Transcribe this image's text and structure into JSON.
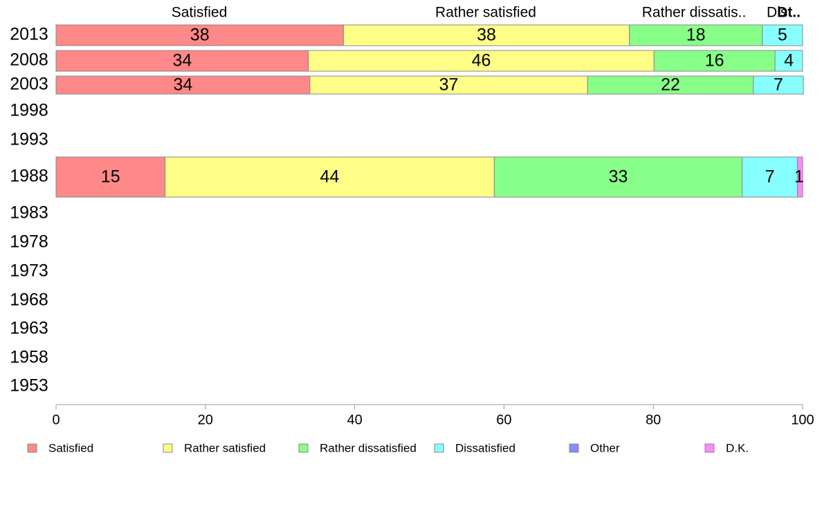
{
  "chart_data": {
    "type": "bar",
    "orientation": "horizontal",
    "stacked": "percent",
    "categories": [
      "2013",
      "2008",
      "2003",
      "1998",
      "1993",
      "1988",
      "1983",
      "1978",
      "1973",
      "1968",
      "1963",
      "1958",
      "1953"
    ],
    "series": [
      {
        "name": "Satisfied",
        "color": "#ff8888",
        "values": [
          38.5,
          33.8,
          34.0,
          null,
          null,
          14.6,
          null,
          null,
          null,
          null,
          null,
          null,
          null
        ],
        "labels": [
          "38",
          "34",
          "34",
          "",
          "",
          "15",
          "",
          "",
          "",
          "",
          "",
          "",
          ""
        ]
      },
      {
        "name": "Rather satisfied",
        "color": "#ffff88",
        "values": [
          38.3,
          46.3,
          37.2,
          null,
          null,
          44.1,
          null,
          null,
          null,
          null,
          null,
          null,
          null
        ],
        "labels": [
          "38",
          "46",
          "37",
          "",
          "",
          "44",
          "",
          "",
          "",
          "",
          "",
          "",
          ""
        ]
      },
      {
        "name": "Rather dissatisfied",
        "color": "#88ff88",
        "values": [
          17.8,
          16.2,
          22.2,
          null,
          null,
          33.2,
          null,
          null,
          null,
          null,
          null,
          null,
          null
        ],
        "labels": [
          "18",
          "16",
          "22",
          "",
          "",
          "33",
          "",
          "",
          "",
          "",
          "",
          "",
          ""
        ]
      },
      {
        "name": "Dissatisfied",
        "color": "#88ffff",
        "values": [
          5.4,
          3.7,
          6.7,
          null,
          null,
          7.4,
          null,
          null,
          null,
          null,
          null,
          null,
          null
        ],
        "labels": [
          "5",
          "4",
          "7",
          "",
          "",
          "7",
          "",
          "",
          "",
          "",
          "",
          "",
          ""
        ]
      },
      {
        "name": "Other",
        "color": "#8888ff",
        "values": [
          0,
          0,
          0,
          null,
          null,
          0,
          null,
          null,
          null,
          null,
          null,
          null,
          null
        ],
        "labels": [
          "",
          "",
          "",
          "",
          "",
          "",
          "",
          "",
          "",
          "",
          "",
          "",
          ""
        ]
      },
      {
        "name": "D.K.",
        "color": "#ff88ff",
        "values": [
          0,
          0,
          0,
          null,
          null,
          0.7,
          null,
          null,
          null,
          null,
          null,
          null,
          null
        ],
        "labels": [
          "",
          "",
          "",
          "",
          "",
          "1",
          "",
          "",
          "",
          "",
          "",
          "",
          ""
        ]
      }
    ],
    "top_labels": [
      "Satisfied",
      "Rather satisfied",
      "Rather dissatis..",
      "Dis",
      "Dt.."
    ],
    "x_ticks": [
      0,
      20,
      40,
      60,
      80,
      100
    ],
    "xlim": [
      0,
      100
    ],
    "grid": false,
    "legend_position": "bottom"
  }
}
